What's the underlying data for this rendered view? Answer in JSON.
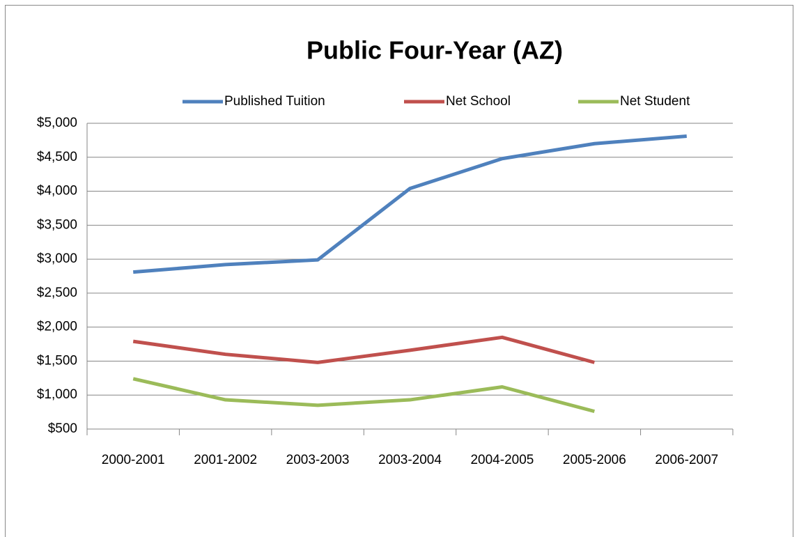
{
  "chart_data": {
    "type": "line",
    "title": "Public Four-Year (AZ)",
    "categories": [
      "2000-2001",
      "2001-2002",
      "2003-2003",
      "2003-2004",
      "2004-2005",
      "2005-2006",
      "2006-2007"
    ],
    "series": [
      {
        "name": "Published Tuition",
        "color": "#4f81bd",
        "values": [
          2810,
          2920,
          2990,
          4040,
          4480,
          4700,
          4810
        ]
      },
      {
        "name": "Net School",
        "color": "#c0504d",
        "values": [
          1790,
          1600,
          1480,
          1660,
          1850,
          1480,
          null
        ]
      },
      {
        "name": "Net Student",
        "color": "#9bbb59",
        "values": [
          1240,
          930,
          850,
          930,
          1120,
          760,
          null
        ]
      }
    ],
    "ylim": [
      500,
      5000
    ],
    "yticks": [
      {
        "value": 500,
        "label": "$500"
      },
      {
        "value": 1000,
        "label": "$1,000"
      },
      {
        "value": 1500,
        "label": "$1,500"
      },
      {
        "value": 2000,
        "label": "$2,000"
      },
      {
        "value": 2500,
        "label": "$2,500"
      },
      {
        "value": 3000,
        "label": "$3,000"
      },
      {
        "value": 3500,
        "label": "$3,500"
      },
      {
        "value": 4000,
        "label": "$4,000"
      },
      {
        "value": 4500,
        "label": "$4,500"
      },
      {
        "value": 5000,
        "label": "$5,000"
      }
    ],
    "grid": true,
    "legend": "top"
  }
}
